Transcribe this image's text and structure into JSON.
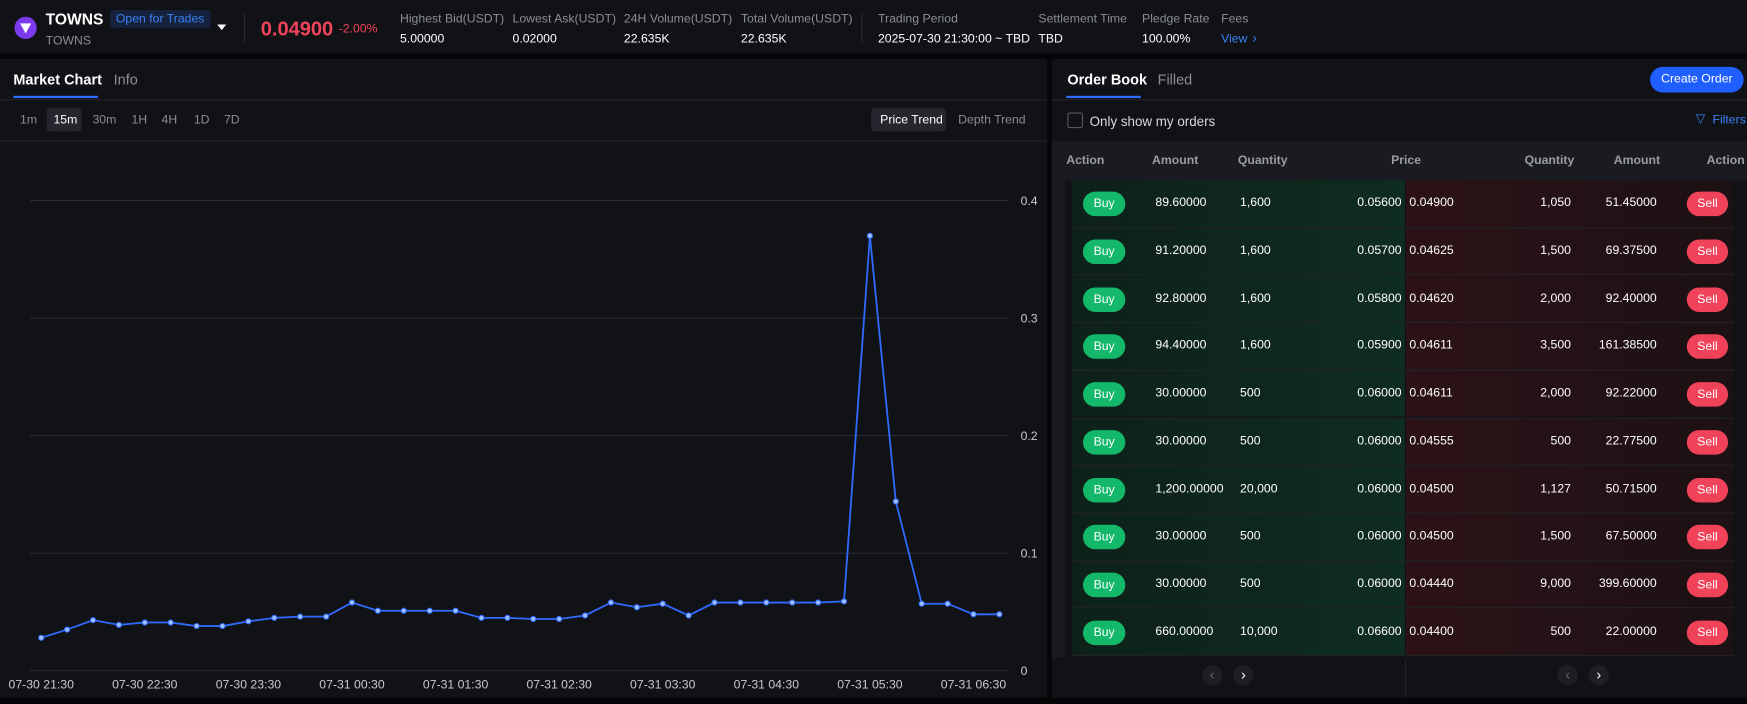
{
  "header": {
    "symbol": "TOWNS",
    "status": "Open for Trades",
    "subtitle": "TOWNS",
    "price": "0.04900",
    "change": "-2.00%",
    "stats": [
      {
        "label": "Highest Bid(USDT)",
        "value": "5.00000"
      },
      {
        "label": "Lowest Ask(USDT)",
        "value": "0.02000"
      },
      {
        "label": "24H Volume(USDT)",
        "value": "22.635K"
      },
      {
        "label": "Total Volume(USDT)",
        "value": "22.635K"
      },
      {
        "label": "Trading Period",
        "value": "2025-07-30 21:30:00 ~ TBD"
      },
      {
        "label": "Settlement Time",
        "value": "TBD"
      },
      {
        "label": "Pledge Rate",
        "value": "100.00%"
      },
      {
        "label": "Fees",
        "value": "View"
      }
    ]
  },
  "left_tabs": [
    "Market Chart",
    "Info"
  ],
  "intervals": [
    "1m",
    "15m",
    "30m",
    "1H",
    "4H",
    "1D",
    "7D"
  ],
  "trend_tabs": [
    "Price Trend",
    "Depth Trend"
  ],
  "chart_data": {
    "type": "line",
    "categories": [
      "07-30 21:30",
      null,
      null,
      null,
      "07-30 22:30",
      null,
      null,
      null,
      "07-30 23:30",
      null,
      null,
      null,
      "07-31 00:30",
      null,
      null,
      null,
      "07-31 01:30",
      null,
      null,
      null,
      "07-31 02:30",
      null,
      null,
      null,
      "07-31 03:30",
      null,
      null,
      null,
      "07-31 04:30",
      null,
      null,
      null,
      "07-31 05:30",
      null,
      null,
      null,
      "07-31 06:30",
      null
    ],
    "values": [
      0.028,
      0.035,
      0.043,
      0.039,
      0.041,
      0.041,
      0.038,
      0.038,
      0.042,
      0.045,
      0.046,
      0.046,
      0.058,
      0.051,
      0.051,
      0.051,
      0.051,
      0.045,
      0.045,
      0.044,
      0.044,
      0.047,
      0.058,
      0.054,
      0.057,
      0.047,
      0.058,
      0.058,
      0.058,
      0.058,
      0.058,
      0.059,
      0.37,
      0.144,
      0.057,
      0.057,
      0.048,
      0.048
    ],
    "color": "#2f6bff",
    "ylim": [
      0,
      0.4
    ],
    "yticks": [
      0,
      0.1,
      0.2,
      0.3,
      0.4
    ],
    "grid": true
  },
  "order_book": {
    "tabs": [
      "Order Book",
      "Filled"
    ],
    "create_button": "Create Order",
    "checkbox_label": "Only show my orders",
    "filters": "Filters",
    "columns": [
      "Action",
      "Amount",
      "Quantity",
      "Price",
      "Quantity",
      "Amount",
      "Action"
    ],
    "buy_label": "Buy",
    "sell_label": "Sell",
    "rows": [
      [
        "89.60000",
        "1,600",
        "0.05600",
        "0.04900",
        "1,050",
        "51.45000"
      ],
      [
        "91.20000",
        "1,600",
        "0.05700",
        "0.04625",
        "1,500",
        "69.37500"
      ],
      [
        "92.80000",
        "1,600",
        "0.05800",
        "0.04620",
        "2,000",
        "92.40000"
      ],
      [
        "94.40000",
        "1,600",
        "0.05900",
        "0.04611",
        "3,500",
        "161.38500"
      ],
      [
        "30.00000",
        "500",
        "0.06000",
        "0.04611",
        "2,000",
        "92.22000"
      ],
      [
        "30.00000",
        "500",
        "0.06000",
        "0.04555",
        "500",
        "22.77500"
      ],
      [
        "1,200.00000",
        "20,000",
        "0.06000",
        "0.04500",
        "1,127",
        "50.71500"
      ],
      [
        "30.00000",
        "500",
        "0.06000",
        "0.04500",
        "1,500",
        "67.50000"
      ],
      [
        "30.00000",
        "500",
        "0.06000",
        "0.04440",
        "9,000",
        "399.60000"
      ],
      [
        "660.00000",
        "10,000",
        "0.06600",
        "0.04400",
        "500",
        "22.00000"
      ]
    ]
  }
}
